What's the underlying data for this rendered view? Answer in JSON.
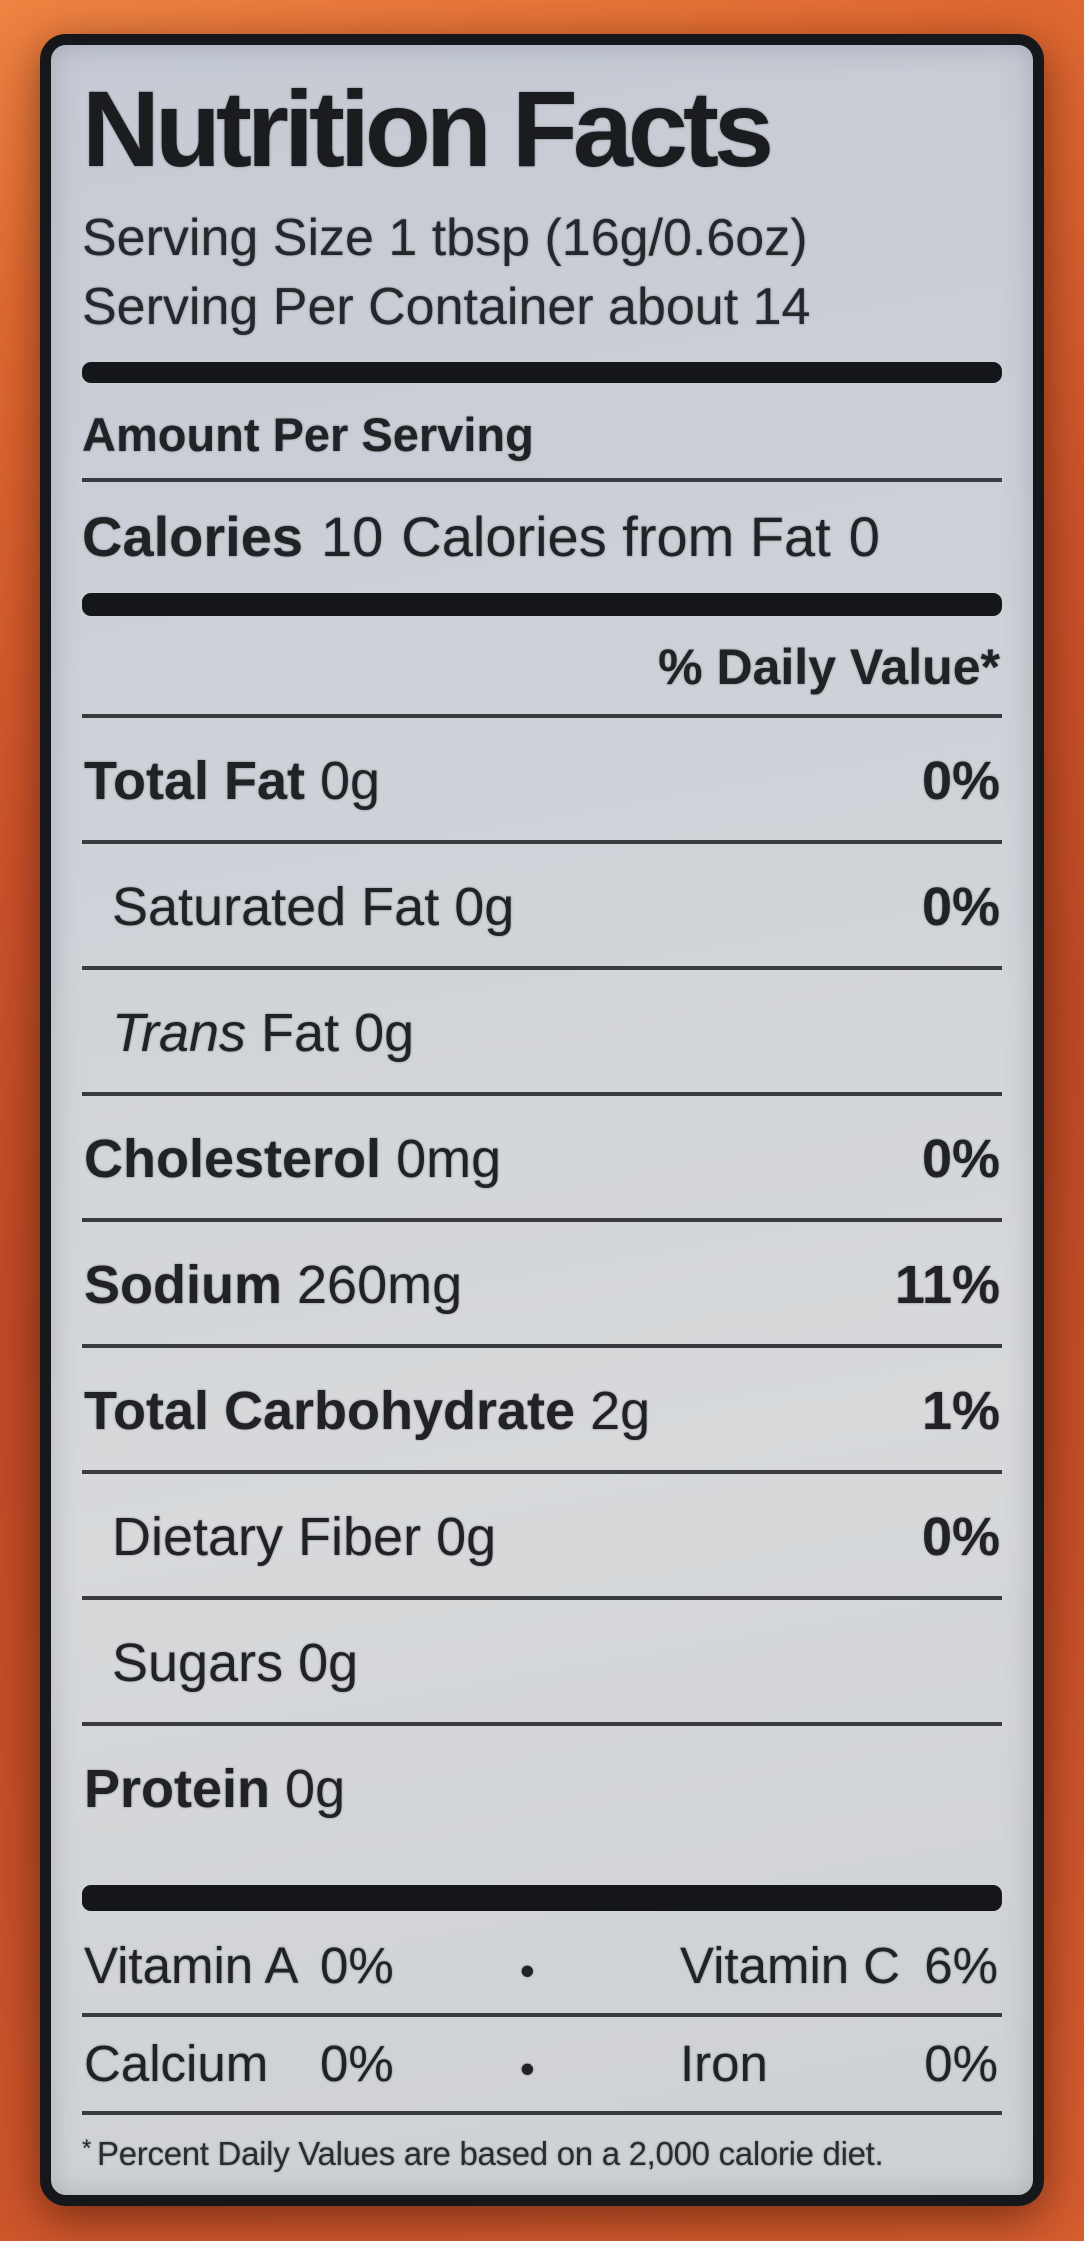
{
  "label": {
    "title": "Nutrition Facts",
    "serving_size_line": "Serving Size 1 tbsp (16g/0.6oz)",
    "servings_per_container_line": "Serving Per Container about 14",
    "amount_per_serving": "Amount Per Serving",
    "calories": {
      "label": "Calories",
      "value": "10",
      "from_fat_label": "Calories from Fat",
      "from_fat_value": "0"
    },
    "daily_value_header": "% Daily Value*",
    "rows": [
      {
        "name": "Total Fat",
        "amount": "0g",
        "dv": "0%"
      },
      {
        "name": "Saturated Fat",
        "amount": "0g",
        "dv": "0%"
      },
      {
        "name": "Trans",
        "name_rest": "Fat",
        "amount": "0g",
        "dv": ""
      },
      {
        "name": "Cholesterol",
        "amount": "0mg",
        "dv": "0%"
      },
      {
        "name": "Sodium",
        "amount": "260mg",
        "dv": "11%"
      },
      {
        "name": "Total Carbohydrate",
        "amount": "2g",
        "dv": "1%"
      },
      {
        "name": "Dietary Fiber",
        "amount": "0g",
        "dv": "0%"
      },
      {
        "name": "Sugars",
        "amount": "0g",
        "dv": ""
      },
      {
        "name": "Protein",
        "amount": "0g",
        "dv": ""
      }
    ],
    "bullet": "•",
    "vitamins": [
      {
        "left_name": "Vitamin A",
        "left_value": "0%",
        "right_name": "Vitamin C",
        "right_value": "6%"
      },
      {
        "left_name": "Calcium",
        "left_value": "0%",
        "right_name": "Iron",
        "right_value": "0%"
      }
    ],
    "footnote_mark": "*",
    "footnote_text": "Percent Daily Values are based on a 2,000 calorie diet."
  },
  "colors": {
    "background_orange": "#c64f28",
    "background_orange_light": "#ee8342",
    "label_background": "#cdd0d7",
    "label_border": "#16171a",
    "ink": "#212226"
  }
}
